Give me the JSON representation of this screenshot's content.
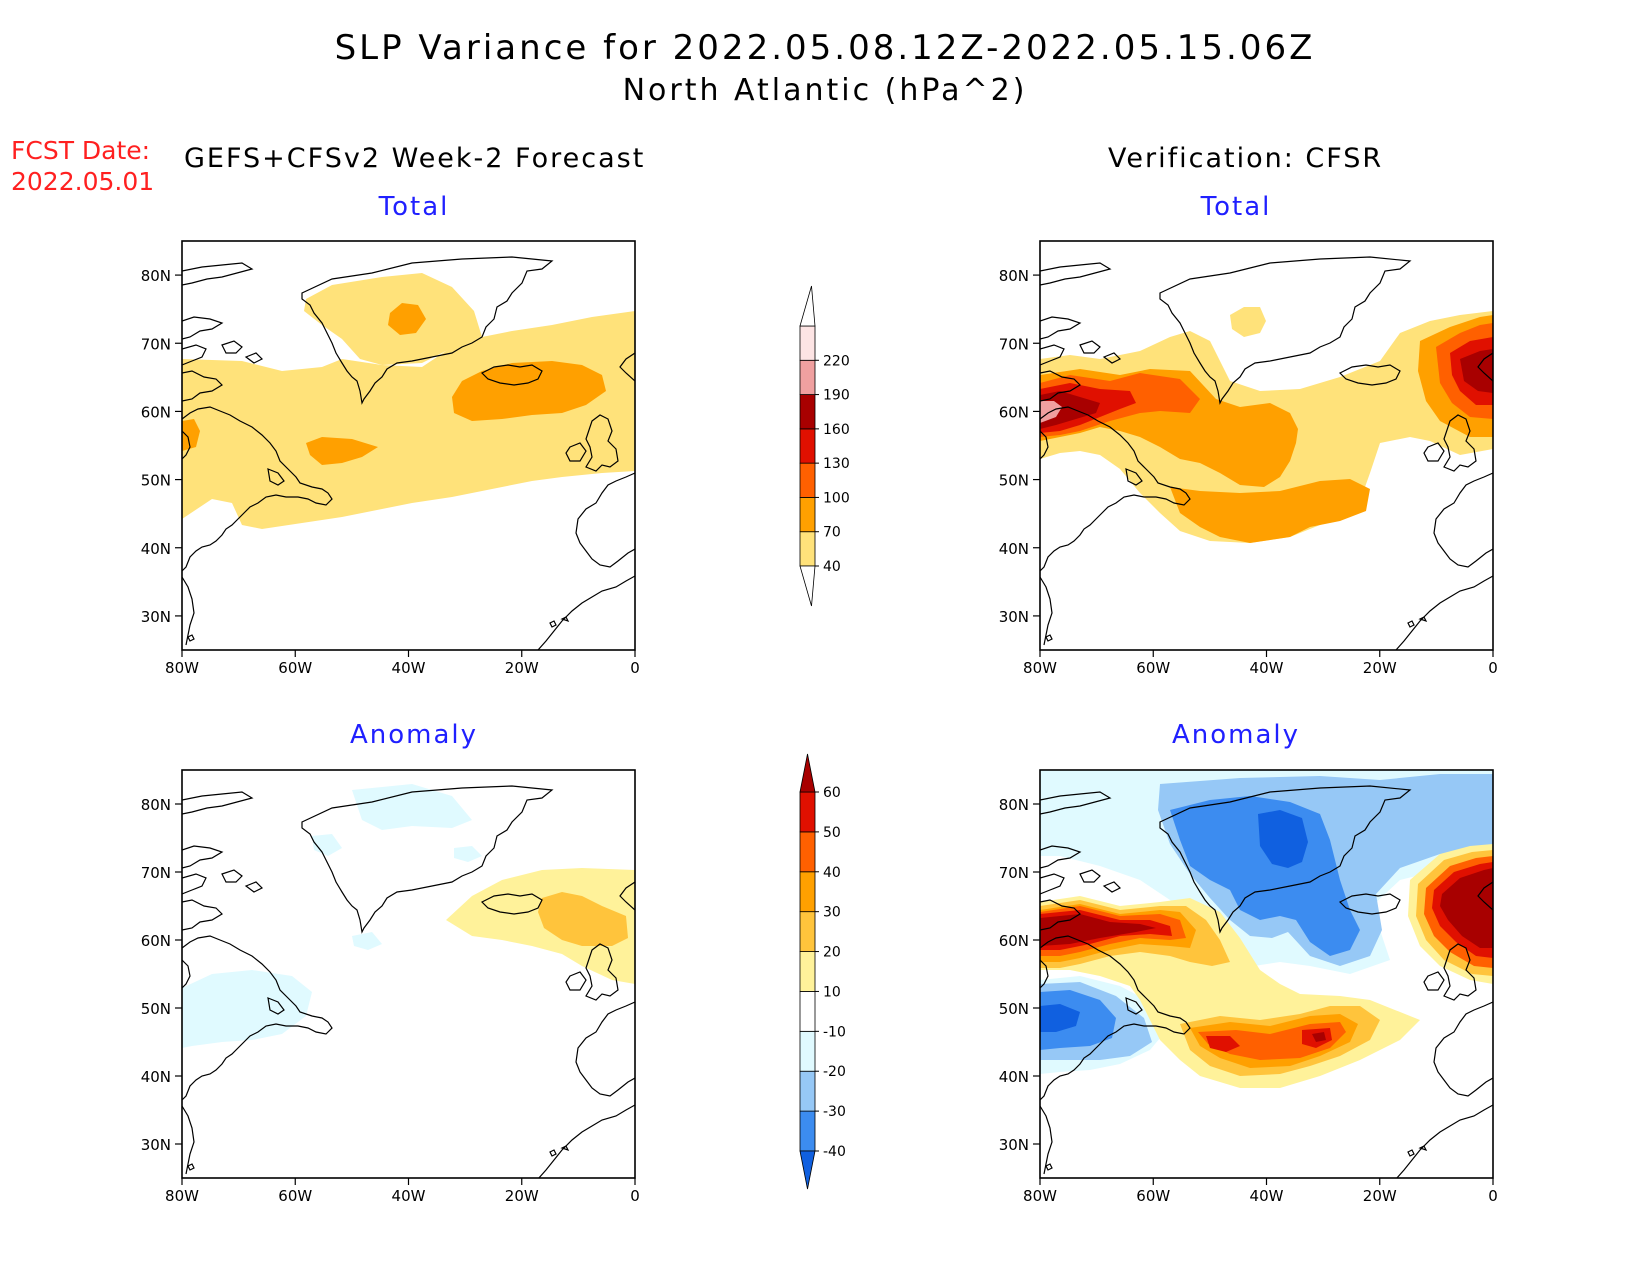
{
  "title": "SLP Variance for 2022.05.08.12Z-2022.05.15.06Z",
  "subtitle": "North Atlantic (hPa^2)",
  "fcst_label_line1": "FCST Date:",
  "fcst_label_line2": "2022.05.01",
  "left_heading": "GEFS+CFSv2 Week-2 Forecast",
  "right_heading": "Verification: CFSR",
  "panel_titles": {
    "total": "Total",
    "anomaly": "Anomaly"
  },
  "axes": {
    "lon_labels": [
      "80W",
      "60W",
      "40W",
      "20W",
      "0"
    ],
    "lon_values": [
      -80,
      -60,
      -40,
      -20,
      0
    ],
    "lat_labels": [
      "80N",
      "70N",
      "60N",
      "50N",
      "40N",
      "30N"
    ],
    "lat_values": [
      80,
      70,
      60,
      50,
      40,
      30
    ],
    "lon_range": [
      -80,
      0
    ],
    "lat_range": [
      25,
      85
    ]
  },
  "colorbars": {
    "total": {
      "levels": [
        40,
        70,
        100,
        130,
        160,
        190,
        220
      ],
      "labels": [
        "40",
        "70",
        "100",
        "130",
        "160",
        "190",
        "220"
      ],
      "colors": [
        "#ffe27a",
        "#ffa000",
        "#ff6000",
        "#e01000",
        "#a80000",
        "#f0a0a0",
        "#fde4e4"
      ]
    },
    "anomaly": {
      "levels": [
        -40,
        -30,
        -20,
        -10,
        10,
        20,
        30,
        40,
        50,
        60
      ],
      "labels": [
        "-40",
        "-30",
        "-20",
        "-10",
        "10",
        "20",
        "30",
        "40",
        "50",
        "60"
      ],
      "colors": [
        "#1060e0",
        "#3c8cf0",
        "#96c8f6",
        "#e0faff",
        "#ffffff",
        "#fff29a",
        "#ffc43c",
        "#ffa000",
        "#ff6000",
        "#e01000",
        "#a80000"
      ]
    }
  },
  "fill_colors": {
    "total_40": "#ffe27a",
    "total_70": "#ffa000",
    "total_100": "#ff6000",
    "total_130": "#e01000",
    "total_160": "#a80000",
    "total_190": "#f0a0a0",
    "anom_neg10": "#e0faff",
    "anom_neg20": "#96c8f6",
    "anom_neg30": "#3c8cf0",
    "anom_neg40": "#1060e0",
    "anom_10": "#fff29a",
    "anom_20": "#ffc43c",
    "anom_30": "#ffa000",
    "anom_40": "#ff6000",
    "anom_50": "#e01000",
    "anom_60": "#a80000"
  }
}
